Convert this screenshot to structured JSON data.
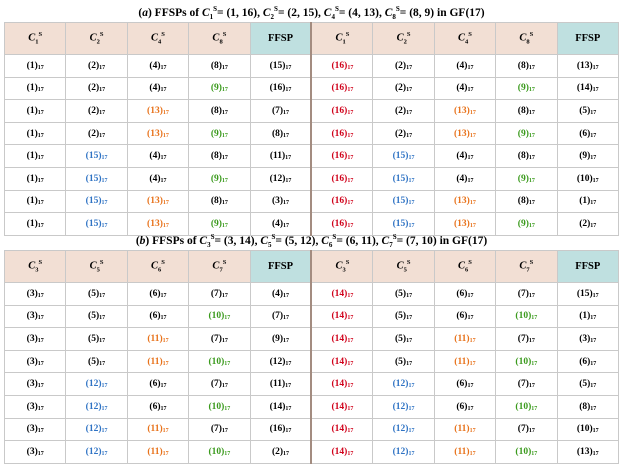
{
  "colors": {
    "k": "#000000",
    "r": "#d0021b",
    "o": "#e8731c",
    "g": "#3a9a1c",
    "b": "#2f73c4",
    "header_bg": "#f2dfd4",
    "ffsp_header_bg": "#bfe0e0"
  },
  "subscript": "17",
  "tables": [
    {
      "title_parts": [
        {
          "t": "(",
          "s": ""
        },
        {
          "t": "a",
          "s": "i"
        },
        {
          "t": ") FFSPs of ",
          "s": ""
        },
        {
          "t": "C",
          "s": "i"
        },
        {
          "t": "1",
          "s": "sub"
        },
        {
          "t": "S",
          "s": "sup"
        },
        {
          "t": "= (1, 16), ",
          "s": ""
        },
        {
          "t": "C",
          "s": "i"
        },
        {
          "t": "2",
          "s": "sub"
        },
        {
          "t": "S",
          "s": "sup"
        },
        {
          "t": "= (2, 15), ",
          "s": ""
        },
        {
          "t": "C",
          "s": "i"
        },
        {
          "t": "4",
          "s": "sub"
        },
        {
          "t": "S",
          "s": "sup"
        },
        {
          "t": "= (4, 13), ",
          "s": ""
        },
        {
          "t": "C",
          "s": "i"
        },
        {
          "t": "8",
          "s": "sub"
        },
        {
          "t": "S",
          "s": "sup"
        },
        {
          "t": "= (8, 9) in GF(17)",
          "s": ""
        }
      ],
      "headers": [
        {
          "base": "C",
          "sub": "1",
          "sup": "S"
        },
        {
          "base": "C",
          "sub": "2",
          "sup": "S"
        },
        {
          "base": "C",
          "sub": "4",
          "sup": "S"
        },
        {
          "base": "C",
          "sub": "8",
          "sup": "S"
        },
        {
          "label": "FFSP"
        },
        {
          "base": "C",
          "sub": "1",
          "sup": "S"
        },
        {
          "base": "C",
          "sub": "2",
          "sup": "S"
        },
        {
          "base": "C",
          "sub": "4",
          "sup": "S"
        },
        {
          "base": "C",
          "sub": "8",
          "sup": "S"
        },
        {
          "label": "FFSP"
        }
      ],
      "rows": [
        [
          [
            "1",
            "k"
          ],
          [
            "2",
            "k"
          ],
          [
            "4",
            "k"
          ],
          [
            "8",
            "k"
          ],
          [
            "15",
            "k"
          ],
          [
            "16",
            "r"
          ],
          [
            "2",
            "k"
          ],
          [
            "4",
            "k"
          ],
          [
            "8",
            "k"
          ],
          [
            "13",
            "k"
          ]
        ],
        [
          [
            "1",
            "k"
          ],
          [
            "2",
            "k"
          ],
          [
            "4",
            "k"
          ],
          [
            "9",
            "g"
          ],
          [
            "16",
            "k"
          ],
          [
            "16",
            "r"
          ],
          [
            "2",
            "k"
          ],
          [
            "4",
            "k"
          ],
          [
            "9",
            "g"
          ],
          [
            "14",
            "k"
          ]
        ],
        [
          [
            "1",
            "k"
          ],
          [
            "2",
            "k"
          ],
          [
            "13",
            "o"
          ],
          [
            "8",
            "k"
          ],
          [
            "7",
            "k"
          ],
          [
            "16",
            "r"
          ],
          [
            "2",
            "k"
          ],
          [
            "13",
            "o"
          ],
          [
            "8",
            "k"
          ],
          [
            "5",
            "k"
          ]
        ],
        [
          [
            "1",
            "k"
          ],
          [
            "2",
            "k"
          ],
          [
            "13",
            "o"
          ],
          [
            "9",
            "g"
          ],
          [
            "8",
            "k"
          ],
          [
            "16",
            "r"
          ],
          [
            "2",
            "k"
          ],
          [
            "13",
            "o"
          ],
          [
            "9",
            "g"
          ],
          [
            "6",
            "k"
          ]
        ],
        [
          [
            "1",
            "k"
          ],
          [
            "15",
            "b"
          ],
          [
            "4",
            "k"
          ],
          [
            "8",
            "k"
          ],
          [
            "11",
            "k"
          ],
          [
            "16",
            "r"
          ],
          [
            "15",
            "b"
          ],
          [
            "4",
            "k"
          ],
          [
            "8",
            "k"
          ],
          [
            "9",
            "k"
          ]
        ],
        [
          [
            "1",
            "k"
          ],
          [
            "15",
            "b"
          ],
          [
            "4",
            "k"
          ],
          [
            "9",
            "g"
          ],
          [
            "12",
            "k"
          ],
          [
            "16",
            "r"
          ],
          [
            "15",
            "b"
          ],
          [
            "4",
            "k"
          ],
          [
            "9",
            "g"
          ],
          [
            "10",
            "k"
          ]
        ],
        [
          [
            "1",
            "k"
          ],
          [
            "15",
            "b"
          ],
          [
            "13",
            "o"
          ],
          [
            "8",
            "k"
          ],
          [
            "3",
            "k"
          ],
          [
            "16",
            "r"
          ],
          [
            "15",
            "b"
          ],
          [
            "13",
            "o"
          ],
          [
            "8",
            "k"
          ],
          [
            "1",
            "k"
          ]
        ],
        [
          [
            "1",
            "k"
          ],
          [
            "15",
            "b"
          ],
          [
            "13",
            "o"
          ],
          [
            "9",
            "g"
          ],
          [
            "4",
            "k"
          ],
          [
            "16",
            "r"
          ],
          [
            "15",
            "b"
          ],
          [
            "13",
            "o"
          ],
          [
            "9",
            "g"
          ],
          [
            "2",
            "k"
          ]
        ]
      ]
    },
    {
      "title_parts": [
        {
          "t": "(",
          "s": ""
        },
        {
          "t": "b",
          "s": "i"
        },
        {
          "t": ") FFSPs of ",
          "s": ""
        },
        {
          "t": "C",
          "s": "i"
        },
        {
          "t": "3",
          "s": "sub"
        },
        {
          "t": "S",
          "s": "sup"
        },
        {
          "t": "= (3, 14), ",
          "s": ""
        },
        {
          "t": "C",
          "s": "i"
        },
        {
          "t": "5",
          "s": "sub"
        },
        {
          "t": "S",
          "s": "sup"
        },
        {
          "t": "= (5, 12), ",
          "s": ""
        },
        {
          "t": "C",
          "s": "i"
        },
        {
          "t": "6",
          "s": "sub"
        },
        {
          "t": "S",
          "s": "sup"
        },
        {
          "t": "= (6, 11), ",
          "s": ""
        },
        {
          "t": "C",
          "s": "i"
        },
        {
          "t": "7",
          "s": "sub"
        },
        {
          "t": "S",
          "s": "sup"
        },
        {
          "t": "= (7, 10) in GF(17)",
          "s": ""
        }
      ],
      "headers": [
        {
          "base": "C",
          "sub": "3",
          "sup": "S"
        },
        {
          "base": "C",
          "sub": "5",
          "sup": "S"
        },
        {
          "base": "C",
          "sub": "6",
          "sup": "S"
        },
        {
          "base": "C",
          "sub": "7",
          "sup": "S"
        },
        {
          "label": "FFSP"
        },
        {
          "base": "C",
          "sub": "3",
          "sup": "S"
        },
        {
          "base": "C",
          "sub": "5",
          "sup": "S"
        },
        {
          "base": "C",
          "sub": "6",
          "sup": "S"
        },
        {
          "base": "C",
          "sub": "7",
          "sup": "S"
        },
        {
          "label": "FFSP"
        }
      ],
      "rows": [
        [
          [
            "3",
            "k"
          ],
          [
            "5",
            "k"
          ],
          [
            "6",
            "k"
          ],
          [
            "7",
            "k"
          ],
          [
            "4",
            "k"
          ],
          [
            "14",
            "r"
          ],
          [
            "5",
            "k"
          ],
          [
            "6",
            "k"
          ],
          [
            "7",
            "k"
          ],
          [
            "15",
            "k"
          ]
        ],
        [
          [
            "3",
            "k"
          ],
          [
            "5",
            "k"
          ],
          [
            "6",
            "k"
          ],
          [
            "10",
            "g"
          ],
          [
            "7",
            "k"
          ],
          [
            "14",
            "r"
          ],
          [
            "5",
            "k"
          ],
          [
            "6",
            "k"
          ],
          [
            "10",
            "g"
          ],
          [
            "1",
            "k"
          ]
        ],
        [
          [
            "3",
            "k"
          ],
          [
            "5",
            "k"
          ],
          [
            "11",
            "o"
          ],
          [
            "7",
            "k"
          ],
          [
            "9",
            "k"
          ],
          [
            "14",
            "r"
          ],
          [
            "5",
            "k"
          ],
          [
            "11",
            "o"
          ],
          [
            "7",
            "k"
          ],
          [
            "3",
            "k"
          ]
        ],
        [
          [
            "3",
            "k"
          ],
          [
            "5",
            "k"
          ],
          [
            "11",
            "o"
          ],
          [
            "10",
            "g"
          ],
          [
            "12",
            "k"
          ],
          [
            "14",
            "r"
          ],
          [
            "5",
            "k"
          ],
          [
            "11",
            "o"
          ],
          [
            "10",
            "g"
          ],
          [
            "6",
            "k"
          ]
        ],
        [
          [
            "3",
            "k"
          ],
          [
            "12",
            "b"
          ],
          [
            "6",
            "k"
          ],
          [
            "7",
            "k"
          ],
          [
            "11",
            "k"
          ],
          [
            "14",
            "r"
          ],
          [
            "12",
            "b"
          ],
          [
            "6",
            "k"
          ],
          [
            "7",
            "k"
          ],
          [
            "5",
            "k"
          ]
        ],
        [
          [
            "3",
            "k"
          ],
          [
            "12",
            "b"
          ],
          [
            "6",
            "k"
          ],
          [
            "10",
            "g"
          ],
          [
            "14",
            "k"
          ],
          [
            "14",
            "r"
          ],
          [
            "12",
            "b"
          ],
          [
            "6",
            "k"
          ],
          [
            "10",
            "g"
          ],
          [
            "8",
            "k"
          ]
        ],
        [
          [
            "3",
            "k"
          ],
          [
            "12",
            "b"
          ],
          [
            "11",
            "o"
          ],
          [
            "7",
            "k"
          ],
          [
            "16",
            "k"
          ],
          [
            "14",
            "r"
          ],
          [
            "12",
            "b"
          ],
          [
            "11",
            "o"
          ],
          [
            "7",
            "k"
          ],
          [
            "10",
            "k"
          ]
        ],
        [
          [
            "3",
            "k"
          ],
          [
            "12",
            "b"
          ],
          [
            "11",
            "o"
          ],
          [
            "10",
            "g"
          ],
          [
            "2",
            "k"
          ],
          [
            "14",
            "r"
          ],
          [
            "12",
            "b"
          ],
          [
            "11",
            "o"
          ],
          [
            "10",
            "g"
          ],
          [
            "13",
            "k"
          ]
        ]
      ]
    }
  ]
}
